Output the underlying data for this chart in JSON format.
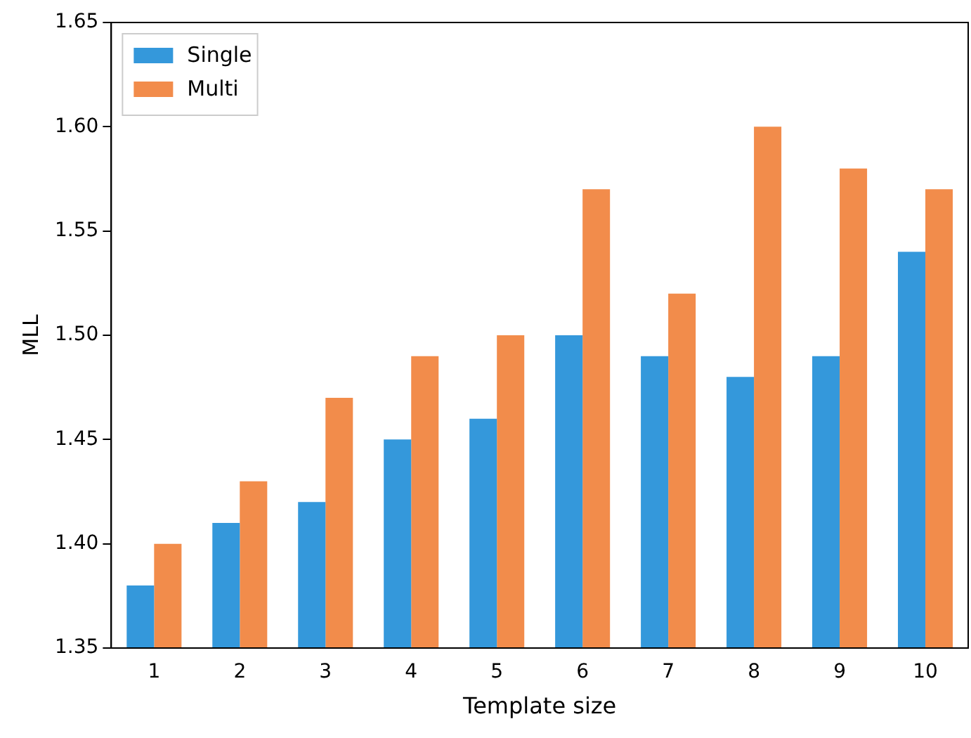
{
  "chart_data": {
    "type": "bar",
    "xlabel": "Template size",
    "ylabel": "MLL",
    "categories": [
      "1",
      "2",
      "3",
      "4",
      "5",
      "6",
      "7",
      "8",
      "9",
      "10"
    ],
    "series": [
      {
        "name": "Single",
        "color": "#3498db",
        "values": [
          1.38,
          1.41,
          1.42,
          1.45,
          1.46,
          1.5,
          1.49,
          1.48,
          1.49,
          1.54
        ]
      },
      {
        "name": "Multi",
        "color": "#f28c4b",
        "values": [
          1.4,
          1.43,
          1.47,
          1.49,
          1.5,
          1.57,
          1.52,
          1.6,
          1.58,
          1.57
        ]
      }
    ],
    "ylim": [
      1.35,
      1.65
    ],
    "yticks": [
      {
        "value": 1.35,
        "label": "1.35"
      },
      {
        "value": 1.4,
        "label": "1.40"
      },
      {
        "value": 1.45,
        "label": "1.45"
      },
      {
        "value": 1.5,
        "label": "1.50"
      },
      {
        "value": 1.55,
        "label": "1.55"
      },
      {
        "value": 1.6,
        "label": "1.60"
      },
      {
        "value": 1.65,
        "label": "1.65"
      }
    ],
    "grid": false,
    "legend": "top left"
  }
}
